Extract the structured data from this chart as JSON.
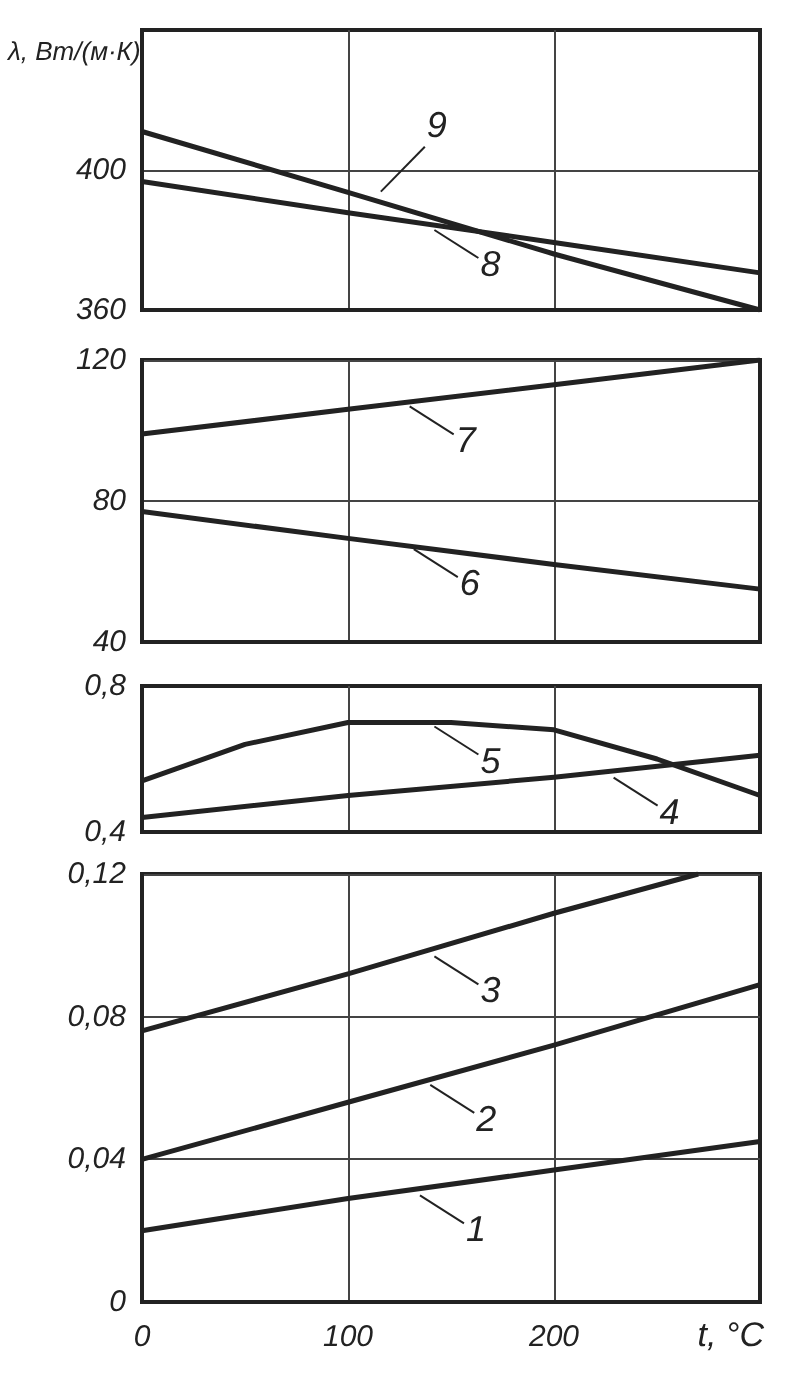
{
  "chart_data": [
    {
      "type": "line",
      "ylabel": "λ, Вт/(м·К)",
      "xlim": [
        0,
        300
      ],
      "xticks": [
        0,
        100,
        200
      ],
      "ylim": [
        360,
        440
      ],
      "yticks": [
        360,
        400
      ],
      "grid": true,
      "tick_labels": "y",
      "series": [
        {
          "color": "#222222",
          "x": [
            0,
            100,
            200,
            300
          ],
          "values": [
            411,
            393.6,
            376,
            360
          ]
        },
        {
          "color": "#222222",
          "x": [
            0,
            100,
            200,
            300
          ],
          "values": [
            396.7,
            387.8,
            379.3,
            370.6
          ]
        }
      ],
      "annotations": [
        {
          "text": "9",
          "x": 114,
          "y": 392
        },
        {
          "text": "8",
          "x": 140,
          "y": 384
        }
      ]
    },
    {
      "type": "line",
      "xlim": [
        0,
        300
      ],
      "xticks": [
        0,
        100,
        200
      ],
      "ylim": [
        40,
        120
      ],
      "yticks": [
        40,
        80,
        120
      ],
      "grid": true,
      "tick_labels": "y",
      "series": [
        {
          "color": "#222222",
          "x": [
            0,
            100,
            200,
            300
          ],
          "values": [
            99,
            106,
            113,
            120
          ]
        },
        {
          "color": "#222222",
          "x": [
            0,
            100,
            200,
            300
          ],
          "values": [
            77,
            69.4,
            62,
            55
          ]
        }
      ],
      "annotations": [
        {
          "text": "7",
          "x": 128,
          "y": 108
        },
        {
          "text": "6",
          "x": 130,
          "y": 67.5
        }
      ]
    },
    {
      "type": "line",
      "xlim": [
        0,
        300
      ],
      "xticks": [
        0,
        100,
        200
      ],
      "ylim": [
        0.4,
        0.8
      ],
      "yticks": [
        {
          "value": 0.4,
          "label": "0,4"
        },
        {
          "value": 0.8,
          "label": "0,8"
        }
      ],
      "grid": "x",
      "tick_labels": "y",
      "series": [
        {
          "color": "#222222",
          "x": [
            0,
            50,
            100,
            150,
            200,
            250,
            300
          ],
          "values": [
            0.54,
            0.64,
            0.7,
            0.7,
            0.68,
            0.6,
            0.5
          ]
        },
        {
          "color": "#222222",
          "x": [
            0,
            100,
            200,
            300
          ],
          "values": [
            0.44,
            0.5,
            0.55,
            0.61
          ]
        }
      ],
      "annotations": [
        {
          "text": "5",
          "x": 140,
          "y": 0.7
        },
        {
          "text": "4",
          "x": 227,
          "y": 0.56
        }
      ]
    },
    {
      "type": "line",
      "xlabel": "t, °C",
      "xlim": [
        0,
        300
      ],
      "xticks": [
        0,
        100,
        200
      ],
      "ylim": [
        0,
        0.12
      ],
      "yticks": [
        0,
        {
          "value": 0.04,
          "label": "0,04"
        },
        {
          "value": 0.08,
          "label": "0,08"
        },
        {
          "value": 0.12,
          "label": "0,12"
        }
      ],
      "grid": true,
      "series": [
        {
          "color": "#222222",
          "x": [
            0,
            100,
            200,
            270
          ],
          "values": [
            0.076,
            0.092,
            0.109,
            0.12
          ]
        },
        {
          "color": "#222222",
          "x": [
            0,
            100,
            200,
            300
          ],
          "values": [
            0.04,
            0.056,
            0.072,
            0.089
          ]
        },
        {
          "color": "#222222",
          "x": [
            0,
            100,
            200,
            300
          ],
          "values": [
            0.02,
            0.029,
            0.037,
            0.045
          ]
        }
      ],
      "annotations": [
        {
          "text": "3",
          "x": 140,
          "y": 0.098
        },
        {
          "text": "2",
          "x": 138,
          "y": 0.062
        },
        {
          "text": "1",
          "x": 133,
          "y": 0.031
        }
      ]
    }
  ]
}
